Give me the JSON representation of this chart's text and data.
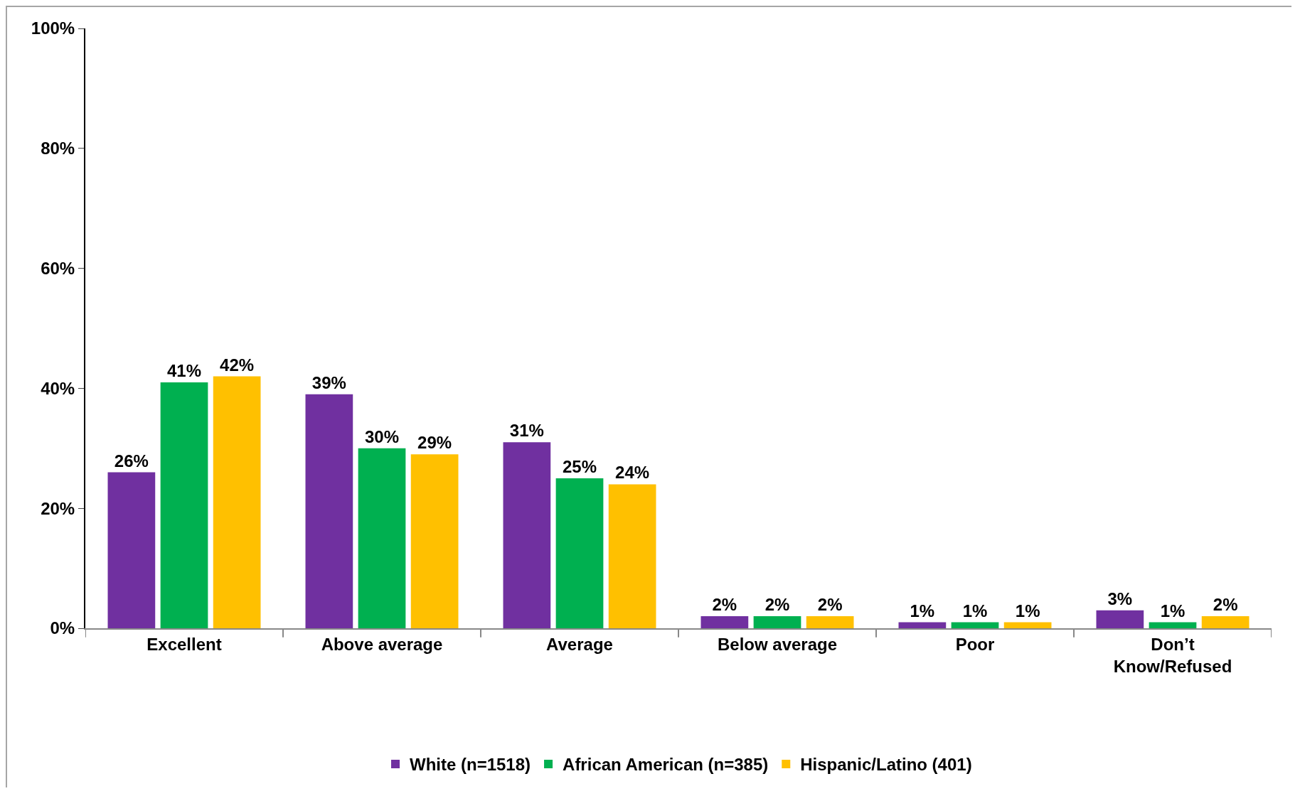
{
  "chart_data": {
    "type": "bar",
    "categories": [
      "Excellent",
      "Above average",
      "Average",
      "Below average",
      "Poor",
      "Don’t Know/Refused"
    ],
    "series": [
      {
        "name": "White (n=1518)",
        "color": "#7030a0",
        "values": [
          26,
          39,
          31,
          2,
          1,
          3
        ],
        "value_labels": [
          "26%",
          "39%",
          "31%",
          "2%",
          "1%",
          "3%"
        ]
      },
      {
        "name": "African American (n=385)",
        "color": "#00b050",
        "values": [
          41,
          30,
          25,
          2,
          1,
          1
        ],
        "value_labels": [
          "41%",
          "30%",
          "25%",
          "2%",
          "1%",
          "1%"
        ]
      },
      {
        "name": "Hispanic/Latino (401)",
        "color": "#ffc000",
        "values": [
          42,
          29,
          24,
          2,
          1,
          2
        ],
        "value_labels": [
          "42%",
          "29%",
          "24%",
          "2%",
          "1%",
          "2%"
        ]
      }
    ],
    "ylim": [
      0,
      100
    ],
    "yticks": [
      {
        "value": 0,
        "label": "0%"
      },
      {
        "value": 20,
        "label": "20%"
      },
      {
        "value": 40,
        "label": "40%"
      },
      {
        "value": 60,
        "label": "60%"
      },
      {
        "value": 80,
        "label": "80%"
      },
      {
        "value": 100,
        "label": "100%"
      }
    ],
    "grid": false,
    "legend": "bottom"
  }
}
